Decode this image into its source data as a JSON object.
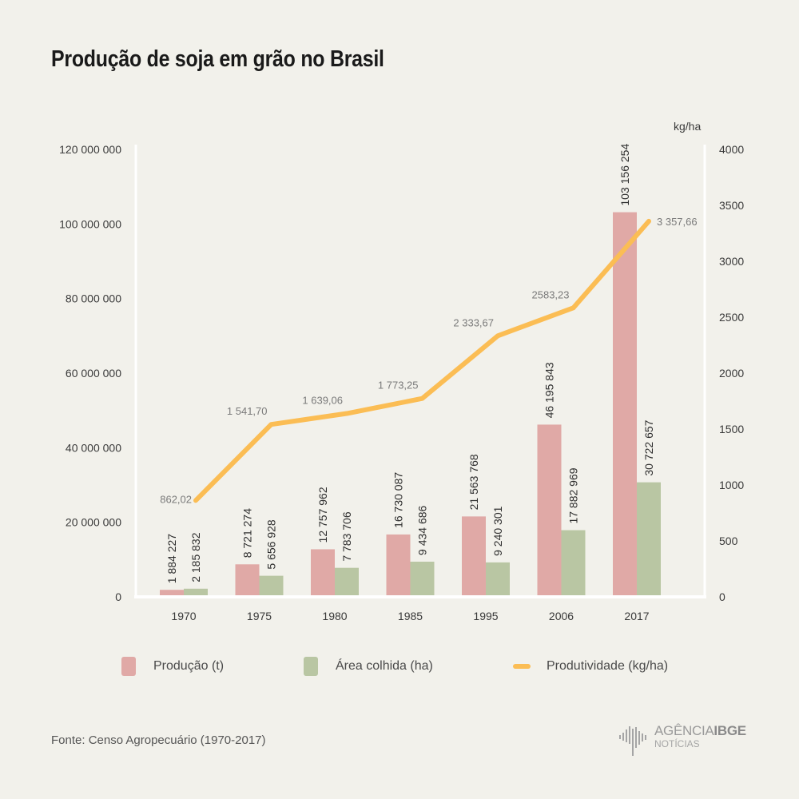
{
  "title": "Produção de soja em grão no Brasil",
  "source": "Fonte: Censo Agropecuário (1970-2017)",
  "logo": {
    "main_light": "AGÊNCIA",
    "main_bold": "IBGE",
    "sub": "NOTÍCIAS",
    "icon": "ibge-logo-icon"
  },
  "colors": {
    "background": "#f2f1eb",
    "producao": "#e0a9a6",
    "area": "#b9c6a3",
    "produtividade": "#fbbd54",
    "axis": "#ffffff"
  },
  "legend": [
    {
      "label": "Produção (t)",
      "type": "bar"
    },
    {
      "label": "Área colhida (ha)",
      "type": "bar"
    },
    {
      "label": "Produtividade (kg/ha)",
      "type": "line"
    }
  ],
  "chart_data": {
    "type": "bar",
    "title": "Produção de soja em grão no Brasil",
    "categories": [
      "1970",
      "1975",
      "1980",
      "1985",
      "1995",
      "2006",
      "2017"
    ],
    "series": [
      {
        "name": "Produção (t)",
        "type": "bar",
        "axis": "left",
        "values": [
          1884227,
          8721274,
          12757962,
          16730087,
          21563768,
          46195843,
          103156254
        ],
        "labels": [
          "1 884 227",
          "8 721 274",
          "12 757 962",
          "16 730 087",
          "21 563 768",
          "46 195 843",
          "103 156 254"
        ]
      },
      {
        "name": "Área colhida (ha)",
        "type": "bar",
        "axis": "left",
        "values": [
          2185832,
          5656928,
          7783706,
          9434686,
          9240301,
          17882969,
          30722657
        ],
        "labels": [
          "2 185 832",
          "5 656 928",
          "7 783 706",
          "9 434 686",
          "9 240 301",
          "17 882 969",
          "30 722 657"
        ]
      },
      {
        "name": "Produtividade (kg/ha)",
        "type": "line",
        "axis": "right",
        "values": [
          862.02,
          1541.7,
          1639.06,
          1773.25,
          2333.67,
          2583.23,
          3357.66
        ],
        "labels": [
          "862,02",
          "1 541,70",
          "1 639,06",
          "1 773,25",
          "2 333,67",
          "2583,23",
          "3 357,66"
        ]
      }
    ],
    "y_left": {
      "ylim": [
        0,
        120000000
      ],
      "ticks": [
        0,
        20000000,
        40000000,
        60000000,
        80000000,
        100000000,
        120000000
      ],
      "tick_labels": [
        "0",
        "20 000 000",
        "40 000 000",
        "60 000 000",
        "80 000 000",
        "100 000 000",
        "120 000 000"
      ]
    },
    "y_right": {
      "label": "kg/ha",
      "ylim": [
        0,
        4000
      ],
      "ticks": [
        0,
        500,
        1000,
        1500,
        2000,
        2500,
        3000,
        3500,
        4000
      ],
      "tick_labels": [
        "0",
        "500",
        "1000",
        "1500",
        "2000",
        "2500",
        "3000",
        "3500",
        "4000"
      ]
    },
    "xlabel": "",
    "grid": false,
    "legend_position": "bottom"
  }
}
